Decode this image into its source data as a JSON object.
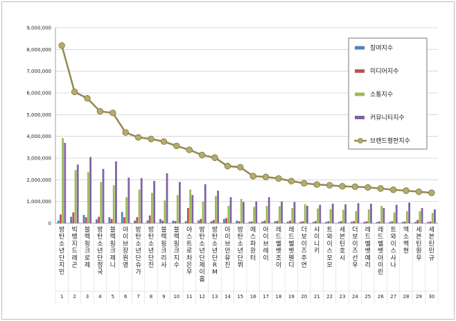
{
  "chart_data": {
    "type": "bar",
    "ylim": [
      0,
      9000000
    ],
    "yticks": [
      "0",
      "1,000,000",
      "2,000,000",
      "3,000,000",
      "4,000,000",
      "5,000,000",
      "6,000,000",
      "7,000,000",
      "8,000,000",
      "9,000,000"
    ],
    "grid": true,
    "legend_position": "right",
    "numbers": [
      "1",
      "2",
      "3",
      "4",
      "5",
      "6",
      "7",
      "8",
      "9",
      "10",
      "11",
      "12",
      "13",
      "14",
      "15",
      "16",
      "17",
      "18",
      "19",
      "20",
      "21",
      "22",
      "23",
      "24",
      "25",
      "26",
      "27",
      "28",
      "29",
      "30"
    ],
    "categories": [
      "방탄소년단 지민",
      "빅뱅 지드래곤",
      "블랙핑크 로제",
      "방탄소년단 정국",
      "블랙핑크 제니",
      "아이브 장원영",
      "방탄소년단 슈가",
      "방탄소년단 진",
      "블랙핑크 리사",
      "블랙핑크 지수",
      "아스트로 차은우",
      "방탄소년단 제이홉",
      "방탄소년단 RM",
      "아이브 안유진",
      "방탄소년단 뷔",
      "에스파 윈터",
      "아이브 레이",
      "레드벨벳 조이",
      "레드벨벳 웬디",
      "더보이즈 주연",
      "샤이니 키",
      "트와이스 모모",
      "세븐틴 호시",
      "더보이즈 선우",
      "레드벨벳 예리",
      "레드벨벳 아이린",
      "트와이스 사나",
      "엑소 백현",
      "세븐틴 원우",
      "세븐틴 민규"
    ],
    "series": [
      {
        "name": "참여지수",
        "color": "#4f81bd",
        "values": [
          120000,
          300000,
          380000,
          180000,
          280000,
          520000,
          120000,
          130000,
          200000,
          120000,
          100000,
          130000,
          90000,
          200000,
          120000,
          70000,
          80000,
          90000,
          70000,
          70000,
          60000,
          60000,
          60000,
          70000,
          60000,
          60000,
          60000,
          60000,
          60000,
          60000
        ]
      },
      {
        "name": "미디어지수",
        "color": "#c0504d",
        "values": [
          400000,
          500000,
          280000,
          300000,
          200000,
          280000,
          280000,
          360000,
          120000,
          100000,
          700000,
          200000,
          150000,
          240000,
          90000,
          80000,
          120000,
          110000,
          120000,
          90000,
          100000,
          90000,
          100000,
          100000,
          90000,
          80000,
          90000,
          80000,
          150000,
          80000
        ]
      },
      {
        "name": "소통지수",
        "color": "#9bbb59",
        "values": [
          3920000,
          2450000,
          2350000,
          1900000,
          1750000,
          1200000,
          1550000,
          1400000,
          1050000,
          1300000,
          1550000,
          1000000,
          1250000,
          800000,
          1120000,
          750000,
          800000,
          780000,
          700000,
          880000,
          680000,
          650000,
          620000,
          560000,
          640000,
          800000,
          500000,
          560000,
          550000,
          480000
        ]
      },
      {
        "name": "커뮤니티지수",
        "color": "#8064a2",
        "values": [
          3700000,
          2700000,
          3050000,
          2500000,
          2850000,
          2100000,
          2080000,
          1950000,
          2300000,
          1900000,
          1300000,
          1800000,
          1500000,
          1200000,
          980000,
          1000000,
          1200000,
          1000000,
          980000,
          800000,
          850000,
          900000,
          870000,
          920000,
          900000,
          700000,
          850000,
          950000,
          700000,
          640000
        ]
      },
      {
        "name": "브랜드평판지수",
        "color": "#948a54",
        "type": "line",
        "values": [
          8180000,
          6050000,
          5750000,
          5150000,
          5080000,
          4180000,
          3950000,
          3880000,
          3760000,
          3560000,
          3380000,
          3140000,
          3020000,
          2630000,
          2580000,
          2170000,
          2130000,
          2060000,
          1940000,
          1840000,
          1780000,
          1750000,
          1700000,
          1680000,
          1650000,
          1600000,
          1540000,
          1500000,
          1450000,
          1400000
        ]
      }
    ]
  }
}
